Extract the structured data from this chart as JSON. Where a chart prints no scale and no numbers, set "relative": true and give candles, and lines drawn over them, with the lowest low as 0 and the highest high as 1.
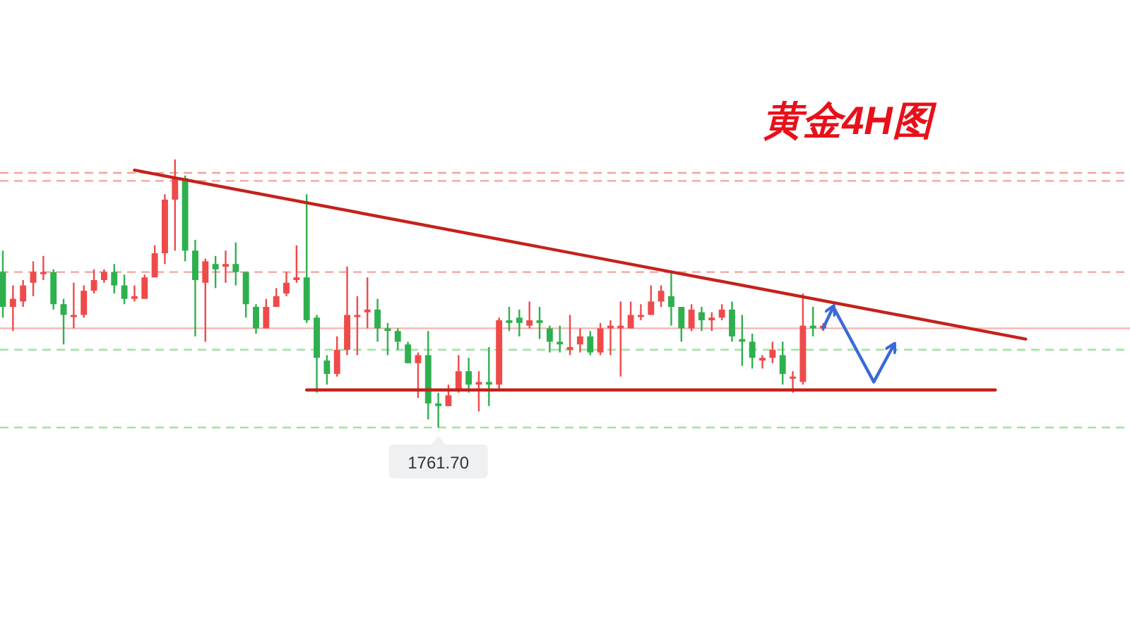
{
  "chart_data": {
    "type": "candlestick",
    "title": "黄金4H图",
    "relative": true,
    "categories": [
      null,
      null,
      null,
      null,
      null,
      null,
      null,
      null,
      null,
      null,
      null,
      null,
      null,
      null,
      null,
      null,
      null,
      null,
      null,
      null,
      null,
      null,
      null,
      null,
      null,
      null,
      null,
      null,
      null,
      null,
      null,
      null,
      null,
      null,
      null,
      null,
      null,
      null,
      null,
      null,
      null,
      null,
      null,
      null,
      null,
      null,
      null,
      null,
      null,
      null,
      null,
      null,
      null,
      null,
      null,
      null,
      null,
      null,
      null,
      null,
      null,
      null,
      null,
      null,
      null,
      null,
      null,
      null,
      null,
      null,
      null,
      null,
      null,
      null,
      null,
      null,
      null,
      null,
      null,
      null,
      null,
      null,
      null,
      null,
      null,
      null,
      null,
      null,
      null,
      null,
      null,
      null,
      null,
      null,
      null,
      null,
      null,
      null,
      null,
      null,
      null,
      null
    ],
    "ohlc": [
      [
        0.58,
        0.66,
        0.41,
        0.45
      ],
      [
        0.45,
        0.53,
        0.36,
        0.48
      ],
      [
        0.47,
        0.55,
        0.45,
        0.53
      ],
      [
        0.54,
        0.62,
        0.49,
        0.58
      ],
      [
        0.58,
        0.64,
        0.55,
        0.58
      ],
      [
        0.58,
        0.59,
        0.44,
        0.46
      ],
      [
        0.46,
        0.48,
        0.31,
        0.42
      ],
      [
        0.42,
        0.54,
        0.37,
        0.42
      ],
      [
        0.42,
        0.53,
        0.41,
        0.51
      ],
      [
        0.51,
        0.59,
        0.5,
        0.55
      ],
      [
        0.55,
        0.59,
        0.54,
        0.58
      ],
      [
        0.58,
        0.61,
        0.5,
        0.53
      ],
      [
        0.53,
        0.57,
        0.46,
        0.48
      ],
      [
        0.48,
        0.53,
        0.47,
        0.49
      ],
      [
        0.48,
        0.57,
        0.48,
        0.56
      ],
      [
        0.56,
        0.68,
        0.56,
        0.65
      ],
      [
        0.65,
        0.87,
        0.61,
        0.85
      ],
      [
        0.85,
        1.0,
        0.66,
        0.93
      ],
      [
        0.93,
        0.94,
        0.62,
        0.66
      ],
      [
        0.66,
        0.7,
        0.34,
        0.55
      ],
      [
        0.54,
        0.63,
        0.32,
        0.62
      ],
      [
        0.61,
        0.64,
        0.52,
        0.59
      ],
      [
        0.6,
        0.66,
        0.54,
        0.61
      ],
      [
        0.61,
        0.69,
        0.53,
        0.58
      ],
      [
        0.58,
        0.58,
        0.41,
        0.46
      ],
      [
        0.45,
        0.46,
        0.35,
        0.37
      ],
      [
        0.37,
        0.48,
        0.37,
        0.45
      ],
      [
        0.45,
        0.52,
        0.45,
        0.49
      ],
      [
        0.5,
        0.58,
        0.49,
        0.54
      ],
      [
        0.55,
        0.68,
        0.54,
        0.56
      ],
      [
        0.56,
        0.87,
        0.39,
        0.4
      ],
      [
        0.41,
        0.42,
        0.13,
        0.26
      ],
      [
        0.25,
        0.27,
        0.16,
        0.2
      ],
      [
        0.2,
        0.34,
        0.19,
        0.29
      ],
      [
        0.29,
        0.6,
        0.27,
        0.42
      ],
      [
        0.42,
        0.49,
        0.27,
        0.42
      ],
      [
        0.43,
        0.56,
        0.37,
        0.44
      ],
      [
        0.44,
        0.48,
        0.32,
        0.37
      ],
      [
        0.37,
        0.39,
        0.27,
        0.36
      ],
      [
        0.36,
        0.37,
        0.29,
        0.32
      ],
      [
        0.31,
        0.32,
        0.24,
        0.24
      ],
      [
        0.24,
        0.28,
        0.11,
        0.27
      ],
      [
        0.27,
        0.36,
        0.03,
        0.09
      ],
      [
        0.09,
        0.13,
        0,
        0.08
      ],
      [
        0.08,
        0.16,
        0.08,
        0.12
      ],
      [
        0.14,
        0.27,
        0.13,
        0.21
      ],
      [
        0.21,
        0.26,
        0.13,
        0.16
      ],
      [
        0.16,
        0.21,
        0.06,
        0.17
      ],
      [
        0.17,
        0.3,
        0.08,
        0.16
      ],
      [
        0.16,
        0.41,
        0.14,
        0.4
      ],
      [
        0.4,
        0.45,
        0.36,
        0.39
      ],
      [
        0.41,
        0.44,
        0.34,
        0.39
      ],
      [
        0.38,
        0.47,
        0.37,
        0.4
      ],
      [
        0.4,
        0.45,
        0.33,
        0.39
      ],
      [
        0.37,
        0.38,
        0.28,
        0.32
      ],
      [
        0.32,
        0.38,
        0.28,
        0.31
      ],
      [
        0.29,
        0.42,
        0.27,
        0.3
      ],
      [
        0.31,
        0.37,
        0.28,
        0.34
      ],
      [
        0.34,
        0.36,
        0.27,
        0.28
      ],
      [
        0.28,
        0.39,
        0.27,
        0.37
      ],
      [
        0.37,
        0.4,
        0.27,
        0.38
      ],
      [
        0.37,
        0.47,
        0.19,
        0.38
      ],
      [
        0.37,
        0.47,
        0.37,
        0.42
      ],
      [
        0.42,
        0.46,
        0.4,
        0.42
      ],
      [
        0.42,
        0.53,
        0.42,
        0.47
      ],
      [
        0.47,
        0.53,
        0.45,
        0.51
      ],
      [
        0.49,
        0.58,
        0.38,
        0.45
      ],
      [
        0.45,
        0.45,
        0.32,
        0.37
      ],
      [
        0.37,
        0.46,
        0.36,
        0.44
      ],
      [
        0.43,
        0.45,
        0.36,
        0.4
      ],
      [
        0.4,
        0.43,
        0.36,
        0.41
      ],
      [
        0.41,
        0.46,
        0.4,
        0.44
      ],
      [
        0.44,
        0.47,
        0.32,
        0.34
      ],
      [
        0.33,
        0.42,
        0.23,
        0.32
      ],
      [
        0.32,
        0.35,
        0.22,
        0.26
      ],
      [
        0.25,
        0.27,
        0.22,
        0.26
      ],
      [
        0.26,
        0.32,
        0.24,
        0.29
      ],
      [
        0.27,
        0.32,
        0.16,
        0.2
      ],
      [
        0.19,
        0.21,
        0.13,
        0.19
      ],
      [
        0.17,
        0.5,
        0.16,
        0.38
      ],
      [
        0.38,
        0.45,
        0.34,
        0.37
      ],
      [
        0.37,
        0.39,
        0.36,
        0.38
      ],
      null,
      null,
      null,
      null,
      null,
      null,
      null,
      null,
      null,
      null,
      null,
      null,
      null,
      null,
      null,
      null,
      null,
      null,
      null,
      null
    ],
    "series": [
      {
        "type": "line",
        "color": "#c4221c",
        "values": [
          null,
          null,
          null,
          null,
          null,
          null,
          null,
          null,
          null,
          null,
          null,
          null,
          null,
          0.96,
          null,
          null,
          null,
          null,
          null,
          null,
          null,
          null,
          null,
          null,
          null,
          null,
          null,
          null,
          null,
          null,
          null,
          null,
          null,
          null,
          null,
          null,
          null,
          null,
          null,
          null,
          null,
          null,
          null,
          null,
          null,
          null,
          null,
          null,
          null,
          null,
          null,
          null,
          null,
          null,
          null,
          null,
          null,
          null,
          null,
          null,
          null,
          null,
          null,
          null,
          null,
          null,
          null,
          null,
          null,
          null,
          null,
          null,
          null,
          null,
          null,
          null,
          null,
          null,
          null,
          null,
          null,
          null,
          null,
          null,
          null,
          null,
          null,
          null,
          null,
          null,
          null,
          null,
          null,
          null,
          null,
          null,
          null,
          null,
          null,
          null,
          null,
          0.33
        ]
      },
      {
        "type": "line",
        "color": "#c4221c",
        "values": [
          null,
          null,
          null,
          null,
          null,
          null,
          null,
          null,
          null,
          null,
          null,
          null,
          null,
          null,
          null,
          null,
          null,
          null,
          null,
          null,
          null,
          null,
          null,
          null,
          null,
          null,
          null,
          null,
          null,
          null,
          0.14,
          null,
          null,
          null,
          null,
          null,
          null,
          null,
          null,
          null,
          null,
          null,
          null,
          null,
          null,
          null,
          null,
          null,
          null,
          null,
          null,
          null,
          null,
          null,
          null,
          null,
          null,
          null,
          null,
          null,
          null,
          null,
          null,
          null,
          null,
          null,
          null,
          null,
          null,
          null,
          null,
          null,
          null,
          null,
          null,
          null,
          null,
          null,
          null,
          null,
          null,
          null,
          null,
          null,
          null,
          null,
          null,
          null,
          null,
          null,
          null,
          null,
          null,
          null,
          null,
          null,
          null,
          null,
          0.14,
          null,
          null,
          null
        ]
      },
      {
        "type": "line",
        "color": "#3a6ad6",
        "values": [
          null,
          null,
          null,
          null,
          null,
          null,
          null,
          null,
          null,
          null,
          null,
          null,
          null,
          null,
          null,
          null,
          null,
          null,
          null,
          null,
          null,
          null,
          null,
          null,
          null,
          null,
          null,
          null,
          null,
          null,
          null,
          null,
          null,
          null,
          null,
          null,
          null,
          null,
          null,
          null,
          null,
          null,
          null,
          null,
          null,
          null,
          null,
          null,
          null,
          null,
          null,
          null,
          null,
          null,
          null,
          null,
          null,
          null,
          null,
          null,
          null,
          null,
          null,
          null,
          null,
          null,
          null,
          null,
          null,
          null,
          null,
          null,
          null,
          null,
          null,
          null,
          null,
          null,
          null,
          null,
          null,
          0.37,
          0.45,
          null,
          null,
          null,
          null,
          null,
          null,
          null,
          null,
          null,
          null,
          null,
          null,
          null,
          null,
          null,
          null,
          null,
          null,
          null
        ]
      },
      {
        "type": "line",
        "color": "#3a6ad6",
        "values": [
          null,
          null,
          null,
          null,
          null,
          null,
          null,
          null,
          null,
          null,
          null,
          null,
          null,
          null,
          null,
          null,
          null,
          null,
          null,
          null,
          null,
          null,
          null,
          null,
          null,
          null,
          null,
          null,
          null,
          null,
          null,
          null,
          null,
          null,
          null,
          null,
          null,
          null,
          null,
          null,
          null,
          null,
          null,
          null,
          null,
          null,
          null,
          null,
          null,
          null,
          null,
          null,
          null,
          null,
          null,
          null,
          null,
          null,
          null,
          null,
          null,
          null,
          null,
          null,
          null,
          null,
          null,
          null,
          null,
          null,
          null,
          null,
          null,
          null,
          null,
          null,
          null,
          null,
          null,
          null,
          null,
          null,
          0.45,
          null,
          null,
          null,
          0.17,
          null,
          0.31,
          null,
          null,
          null,
          null,
          null,
          null,
          null,
          null,
          null,
          null,
          null,
          null,
          null
        ]
      }
    ],
    "ref_lines": [
      {
        "axis": "y",
        "value": 0.95,
        "color": "#f2a49c",
        "line_style": "dashed"
      },
      {
        "axis": "y",
        "value": 0.92,
        "color": "#f2a49c",
        "line_style": "dashed"
      },
      {
        "axis": "y",
        "value": 0.58,
        "color": "#f2a49c",
        "line_style": "dashed"
      },
      {
        "axis": "y",
        "value": 0.37,
        "color": "#f5b5b0",
        "line_style": "solid"
      },
      {
        "axis": "y",
        "value": 0.29,
        "color": "#9fe39f",
        "line_style": "dashed"
      },
      {
        "axis": "y",
        "value": 0.0,
        "color": "#9fe39f",
        "line_style": "dashed"
      }
    ],
    "annotations": [
      "1761.70"
    ]
  }
}
